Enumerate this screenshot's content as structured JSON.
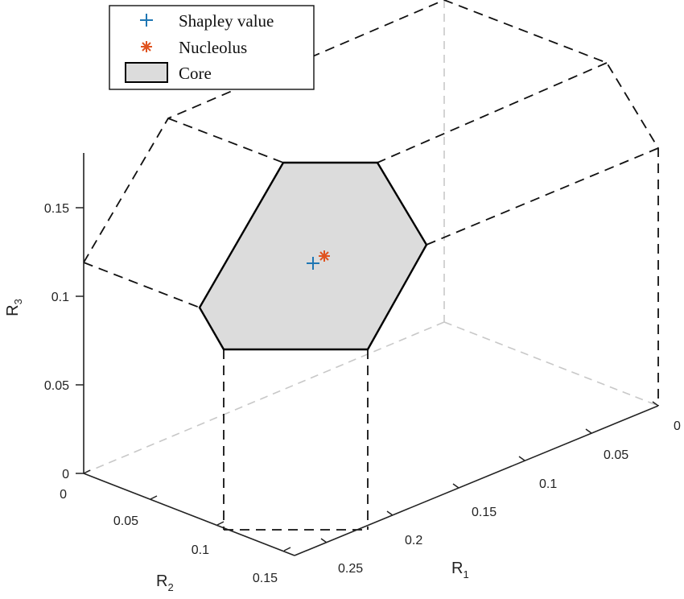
{
  "chart_data": {
    "type": "scatter",
    "title": "",
    "axes": {
      "x": {
        "label": "R",
        "subscript": "1",
        "ticks": [
          "0",
          "0.05",
          "0.1",
          "0.15",
          "0.2",
          "0.25"
        ]
      },
      "y": {
        "label": "R",
        "subscript": "2",
        "ticks": [
          "0",
          "0.05",
          "0.1",
          "0.15"
        ]
      },
      "z": {
        "label": "R",
        "subscript": "3",
        "ticks": [
          "0",
          "0.05",
          "0.1",
          "0.15"
        ]
      }
    },
    "legend": {
      "placement": "top-left",
      "entries": [
        {
          "label": "Shapley value",
          "marker": "plus",
          "color": "#1f77b4"
        },
        {
          "label": "Nucleolus",
          "marker": "asterisk",
          "color": "#e0531f"
        },
        {
          "label": "Core",
          "marker": "patch",
          "color": "#d9d9d9"
        }
      ]
    },
    "series": [
      {
        "name": "Shapley value",
        "points": [
          {
            "x": 0.13,
            "y": 0.075,
            "z": 0.118
          }
        ]
      },
      {
        "name": "Nucleolus",
        "points": [
          {
            "x": 0.127,
            "y": 0.075,
            "z": 0.12
          }
        ]
      }
    ],
    "core_region_color": "#d9d9d9",
    "grid": false
  }
}
